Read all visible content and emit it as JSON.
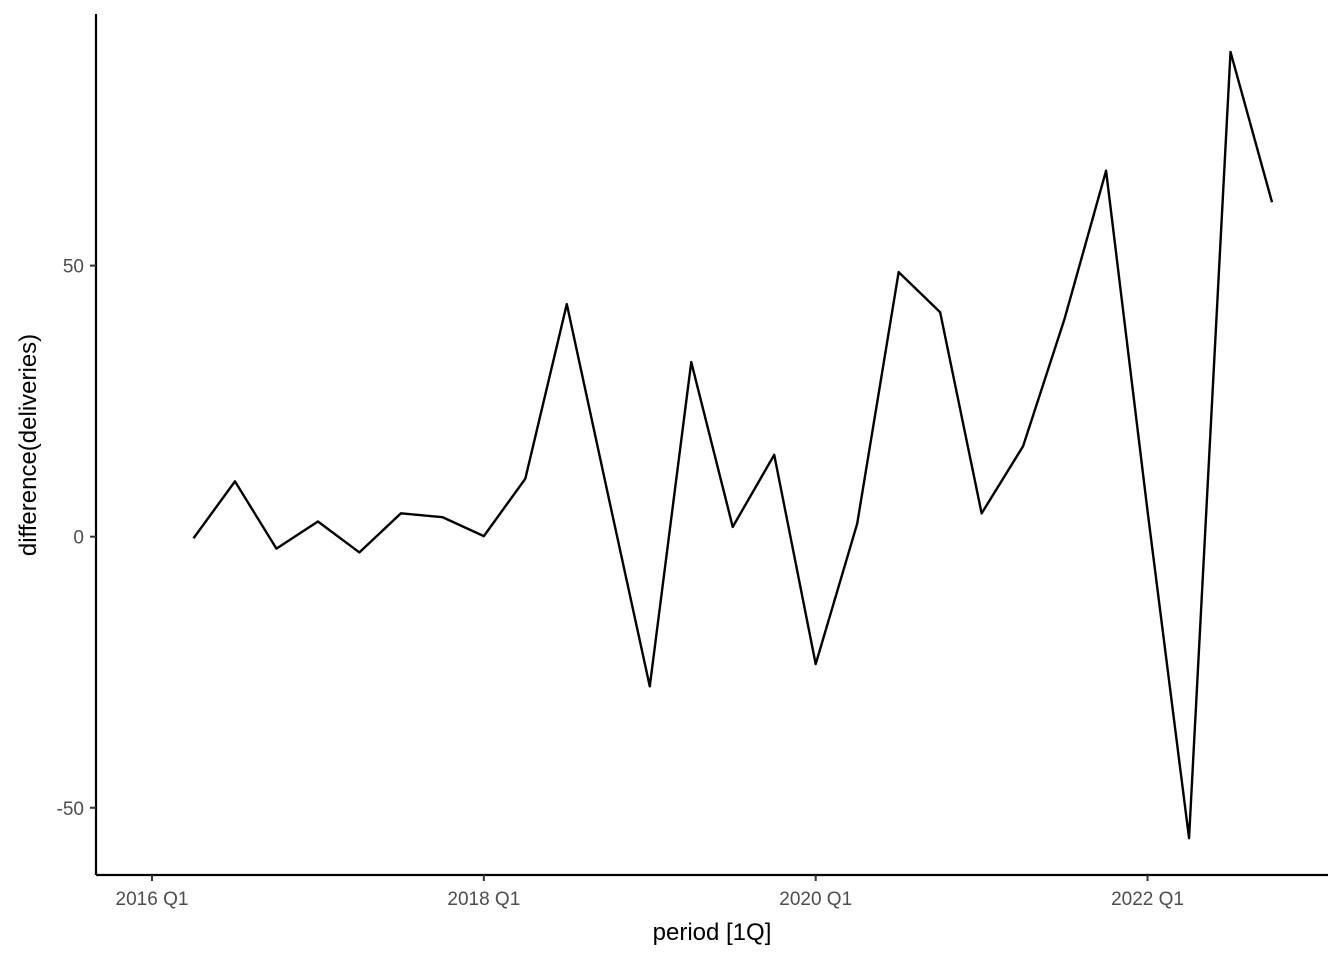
{
  "chart_data": {
    "type": "line",
    "title": "",
    "xlabel": "period [1Q]",
    "ylabel": "difference(deliveries)",
    "x": [
      "2016 Q2",
      "2016 Q3",
      "2016 Q4",
      "2017 Q1",
      "2017 Q2",
      "2017 Q3",
      "2017 Q4",
      "2018 Q1",
      "2018 Q2",
      "2018 Q3",
      "2018 Q4",
      "2019 Q1",
      "2019 Q2",
      "2019 Q3",
      "2019 Q4",
      "2020 Q1",
      "2020 Q2",
      "2020 Q3",
      "2020 Q4",
      "2021 Q1",
      "2021 Q2",
      "2021 Q3",
      "2021 Q4",
      "2022 Q1",
      "2022 Q2",
      "2022 Q3",
      "2022 Q4"
    ],
    "x_index": [
      1,
      2,
      3,
      4,
      5,
      6,
      7,
      8,
      9,
      10,
      11,
      12,
      13,
      14,
      15,
      16,
      17,
      18,
      19,
      20,
      21,
      22,
      23,
      24,
      25,
      26,
      27
    ],
    "series": [
      {
        "values": [
          -0.3,
          10.2,
          -2.2,
          2.8,
          -2.9,
          4.3,
          3.6,
          0.1,
          10.7,
          42.9,
          7.5,
          -27.6,
          32.2,
          1.8,
          15.1,
          -23.5,
          2.4,
          48.8,
          41.4,
          4.3,
          16.7,
          40.2,
          67.5,
          4.7,
          -55.6,
          89.4,
          61.7
        ]
      }
    ],
    "xticks": [
      {
        "label": "2016 Q1",
        "index": 0
      },
      {
        "label": "2018 Q1",
        "index": 8
      },
      {
        "label": "2020 Q1",
        "index": 16
      },
      {
        "label": "2022 Q1",
        "index": 24
      }
    ],
    "yticks": [
      -50,
      0,
      50
    ],
    "xlim": [
      -1.35,
      28.35
    ],
    "ylim": [
      -62.4,
      96.4
    ],
    "grid": false,
    "legend": "none",
    "colors": {
      "line": "#000000",
      "axis": "#000000",
      "tick_text": "#4d4d4d",
      "background": "#ffffff"
    }
  }
}
